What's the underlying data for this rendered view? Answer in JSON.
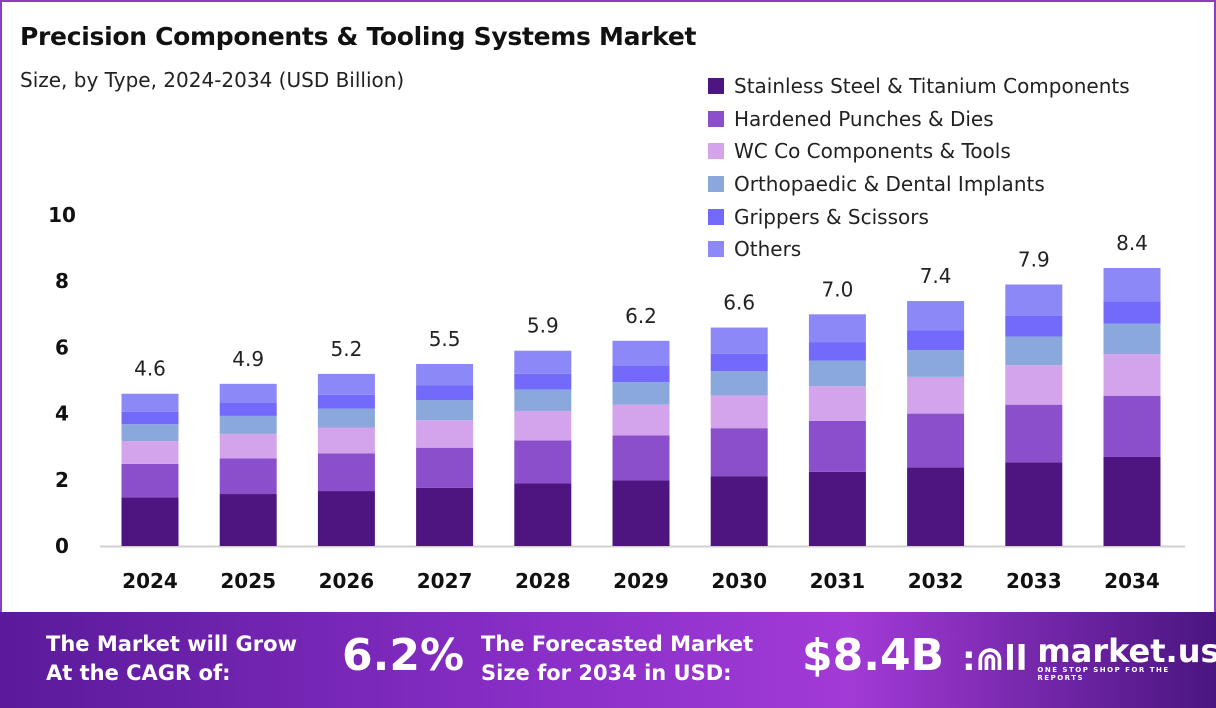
{
  "chart_data": {
    "type": "bar",
    "stacked": true,
    "title": "Precision Components & Tooling Systems Market",
    "subtitle": "Size, by Type, 2024-2034 (USD Billion)",
    "categories": [
      "2024",
      "2025",
      "2026",
      "2027",
      "2028",
      "2029",
      "2030",
      "2031",
      "2032",
      "2033",
      "2034"
    ],
    "totals": [
      "4.6",
      "4.9",
      "5.2",
      "5.5",
      "5.9",
      "6.2",
      "6.6",
      "7.0",
      "7.4",
      "7.9",
      "8.4"
    ],
    "series": [
      {
        "name": "Stainless Steel & Titanium Components",
        "color": "#4e1580",
        "values": [
          1.47,
          1.57,
          1.66,
          1.76,
          1.89,
          1.98,
          2.11,
          2.24,
          2.37,
          2.53,
          2.69
        ]
      },
      {
        "name": "Hardened Punches & Dies",
        "color": "#8b4fcc",
        "values": [
          1.01,
          1.08,
          1.14,
          1.21,
          1.3,
          1.36,
          1.45,
          1.54,
          1.63,
          1.74,
          1.85
        ]
      },
      {
        "name": "WC Co Components & Tools",
        "color": "#d3a4ec",
        "values": [
          0.69,
          0.74,
          0.78,
          0.83,
          0.89,
          0.93,
          0.99,
          1.05,
          1.11,
          1.19,
          1.26
        ]
      },
      {
        "name": "Orthopaedic & Dental Implants",
        "color": "#8aa8dc",
        "values": [
          0.51,
          0.54,
          0.57,
          0.61,
          0.65,
          0.68,
          0.73,
          0.77,
          0.81,
          0.87,
          0.92
        ]
      },
      {
        "name": "Grippers & Scissors",
        "color": "#7369fa",
        "values": [
          0.37,
          0.39,
          0.42,
          0.44,
          0.47,
          0.5,
          0.53,
          0.56,
          0.59,
          0.63,
          0.67
        ]
      },
      {
        "name": "Others",
        "color": "#8c88f8",
        "values": [
          0.55,
          0.58,
          0.63,
          0.65,
          0.7,
          0.75,
          0.79,
          0.84,
          0.89,
          0.94,
          1.01
        ]
      }
    ],
    "yticks": [
      "0",
      "2",
      "4",
      "6",
      "8",
      "10"
    ],
    "ylim": [
      0,
      10
    ],
    "grid": false,
    "legend_position": "top-right"
  },
  "footer": {
    "cagr_label_1": "The Market will Grow",
    "cagr_label_2": "At the CAGR of:",
    "cagr_value": "6.2%",
    "size_label_1": "The Forecasted Market",
    "size_label_2": "Size for 2034 in USD:",
    "size_value": "$8.4B",
    "logo_text": "market.us",
    "logo_tagline": "ONE STOP SHOP FOR THE REPORTS"
  }
}
